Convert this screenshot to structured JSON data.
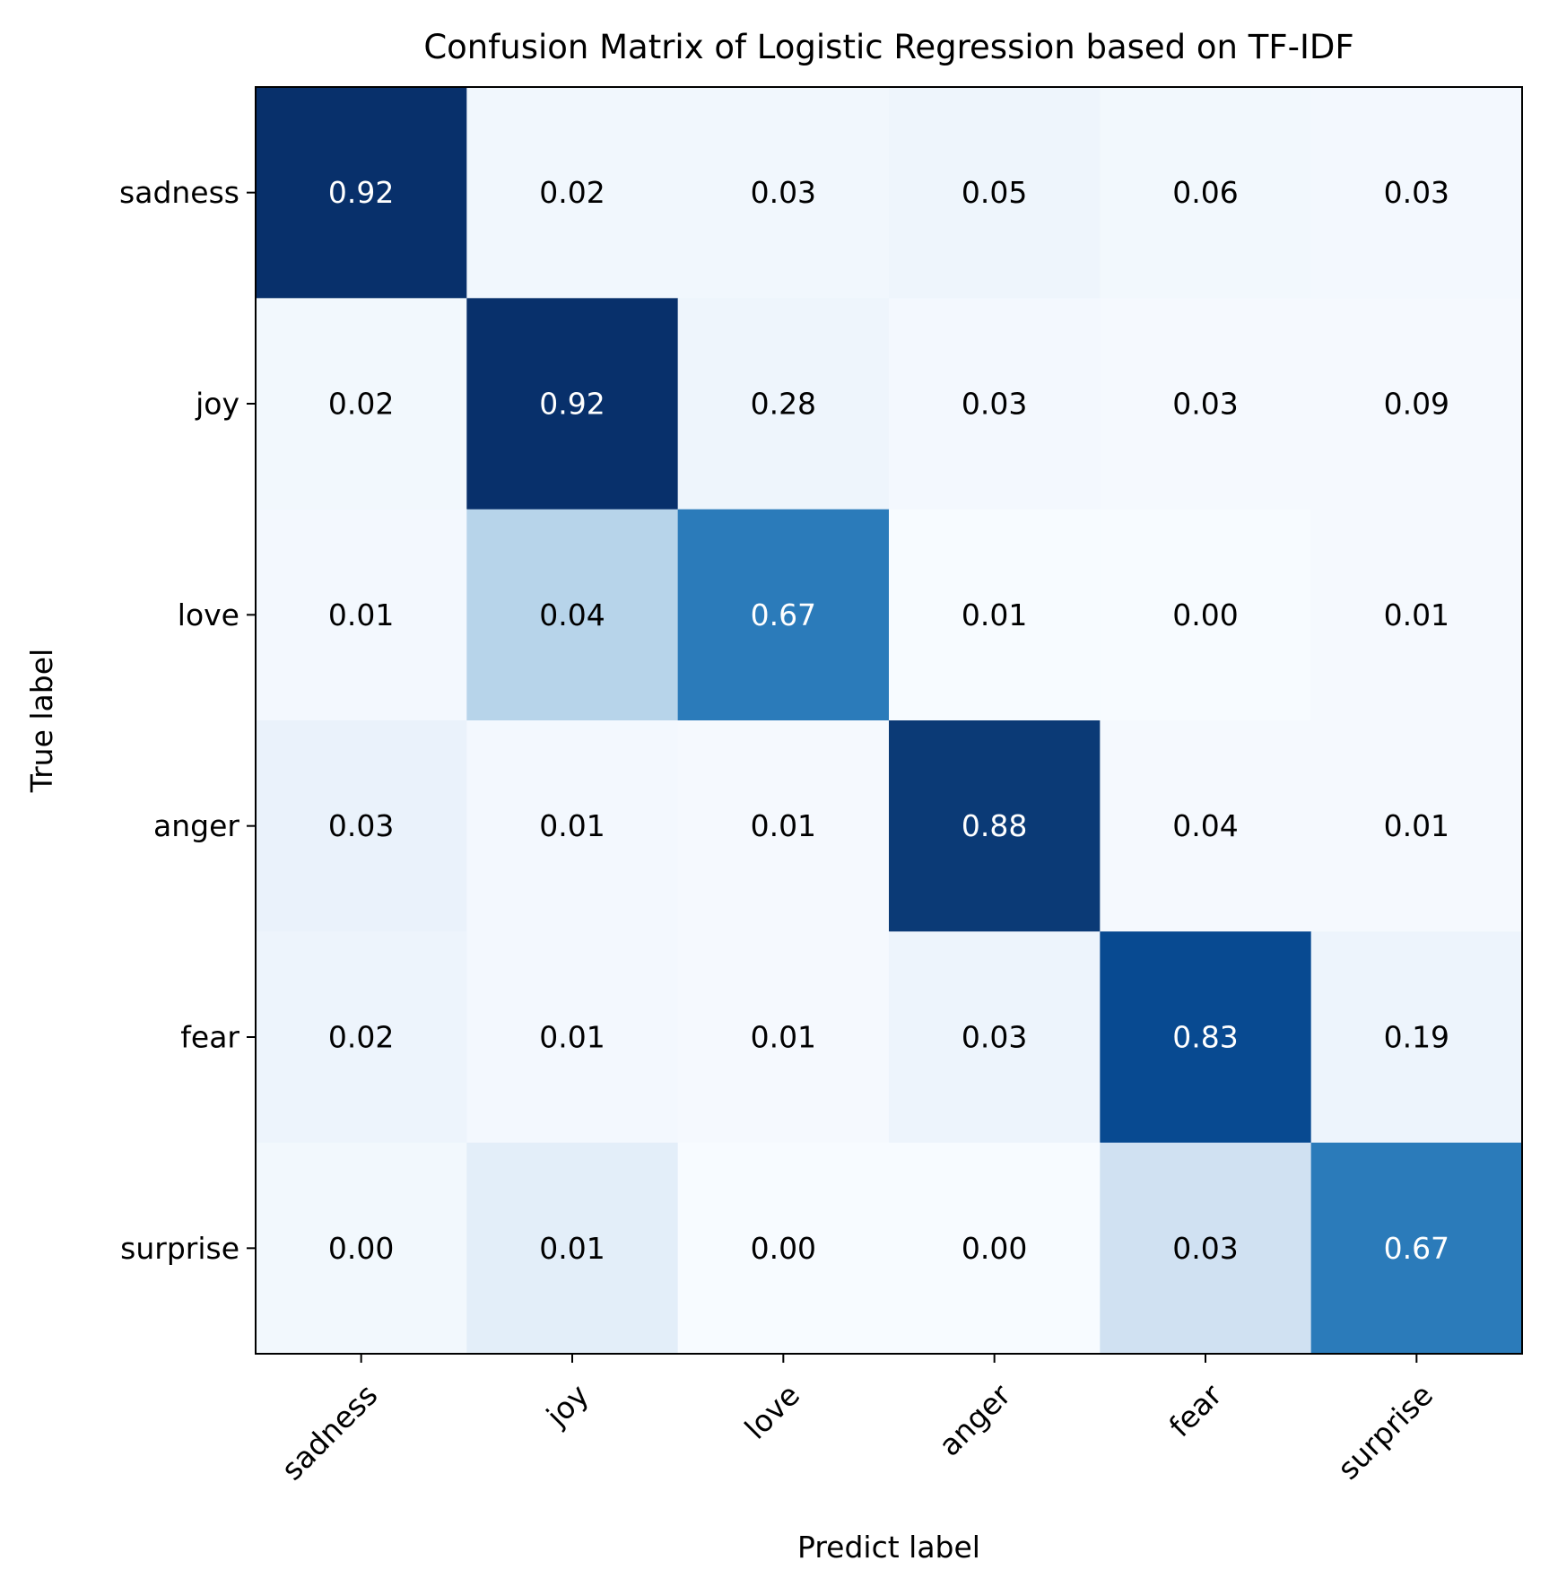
{
  "chart_data": {
    "type": "heatmap",
    "title": "Confusion Matrix of Logistic Regression based on TF-IDF",
    "xlabel": "Predict label",
    "ylabel": "True label",
    "x_categories": [
      "sadness",
      "joy",
      "love",
      "anger",
      "fear",
      "surprise"
    ],
    "y_categories": [
      "sadness",
      "joy",
      "love",
      "anger",
      "fear",
      "surprise"
    ],
    "values": [
      [
        0.92,
        0.02,
        0.03,
        0.05,
        0.06,
        0.03
      ],
      [
        0.02,
        0.92,
        0.28,
        0.03,
        0.03,
        0.09
      ],
      [
        0.01,
        0.04,
        0.67,
        0.01,
        0.0,
        0.01
      ],
      [
        0.03,
        0.01,
        0.01,
        0.88,
        0.04,
        0.01
      ],
      [
        0.02,
        0.01,
        0.01,
        0.03,
        0.83,
        0.19
      ],
      [
        0.0,
        0.01,
        0.0,
        0.0,
        0.03,
        0.67
      ]
    ],
    "cell_colors": [
      [
        "#08306b",
        "#f1f7fd",
        "#f1f7fd",
        "#eef5fc",
        "#f2f8fd",
        "#f3f8fe"
      ],
      [
        "#f2f8fd",
        "#08306b",
        "#eef5fc",
        "#f3f8fe",
        "#f5f9fe",
        "#f5f9fe"
      ],
      [
        "#f3f8fe",
        "#b7d4ea",
        "#2b7bba",
        "#f7fbff",
        "#f7fbff",
        "#f5f9fe"
      ],
      [
        "#eaf2fb",
        "#f3f8fe",
        "#f5f9fe",
        "#0b3a76",
        "#f5f9fe",
        "#f5f9fe"
      ],
      [
        "#edf4fc",
        "#f3f8fe",
        "#f5f9fe",
        "#edf4fc",
        "#084a91",
        "#edf4fc"
      ],
      [
        "#f2f8fd",
        "#e3eef9",
        "#f7fbff",
        "#f7fbff",
        "#d0e1f2",
        "#2b7bba"
      ]
    ],
    "colormap": "Blues",
    "text_colors": {
      "dark": "#000000",
      "light": "#ffffff"
    },
    "light_text_threshold": 0.5,
    "value_format_decimals": 2,
    "grid": false,
    "legend": "none"
  }
}
